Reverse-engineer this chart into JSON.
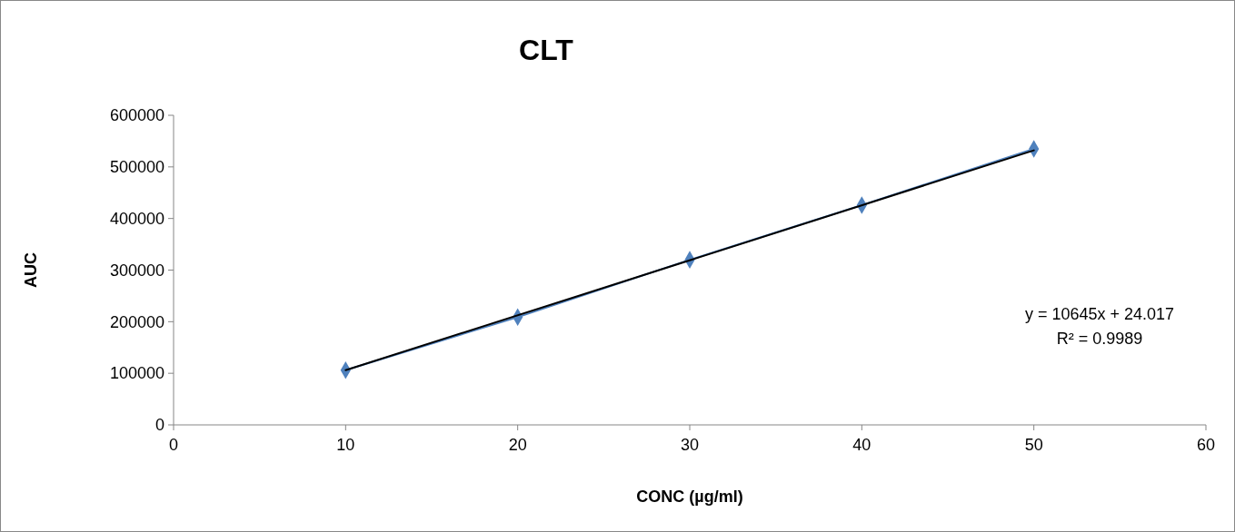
{
  "chart_data": {
    "type": "line",
    "title": "CLT",
    "xlabel": "CONC (µg/ml)",
    "ylabel": "AUC",
    "xlim": [
      0,
      60
    ],
    "xticks": [
      0,
      10,
      20,
      30,
      40,
      50,
      60
    ],
    "ylim": [
      0,
      600000
    ],
    "yticks": [
      0,
      100000,
      200000,
      300000,
      400000,
      500000,
      600000
    ],
    "grid": false,
    "line_style": "solid",
    "series": [
      {
        "marker": "diamond",
        "color": "#4f81bd",
        "x": [
          10,
          20,
          30,
          40,
          50
        ],
        "values": [
          106000,
          209000,
          320000,
          426000,
          535000
        ]
      },
      {
        "type": "line",
        "marker": "none",
        "color": "#000000",
        "x": [
          10,
          50
        ],
        "values": [
          106000,
          532000
        ]
      }
    ],
    "annotations": [
      "y = 10645x + 24.017",
      "R² = 0.9989"
    ]
  }
}
